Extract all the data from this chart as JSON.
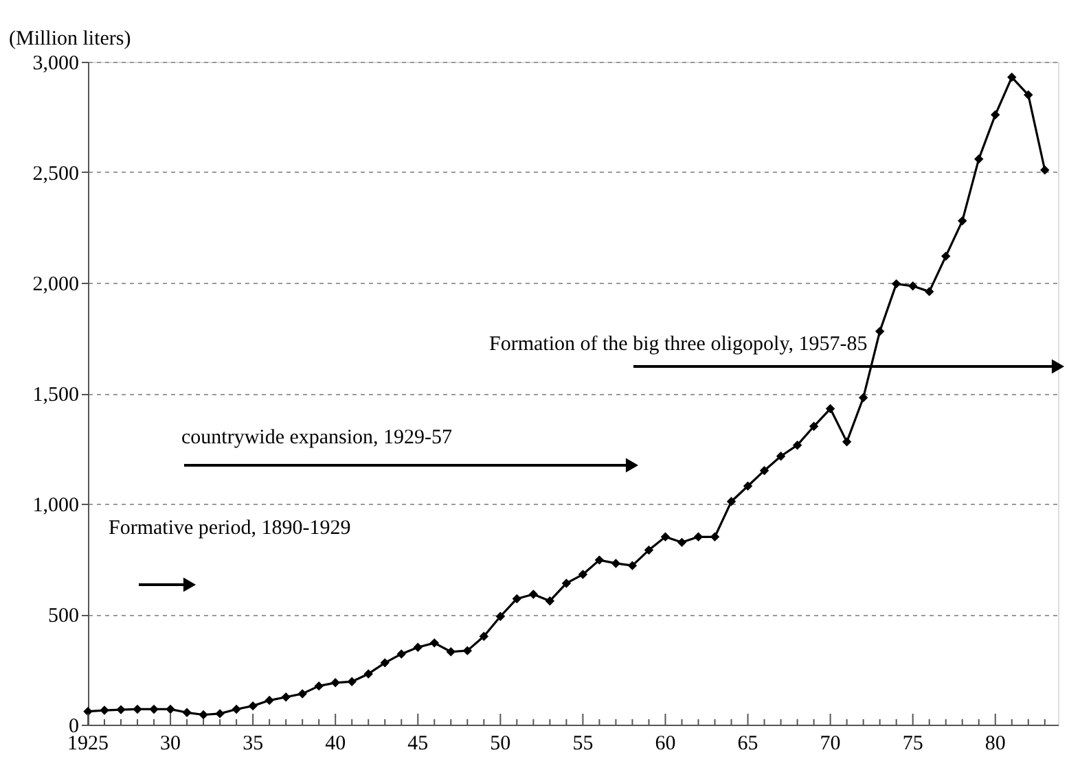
{
  "chart_data": {
    "type": "line",
    "ylabel": "(Million liters)",
    "x": [
      1925,
      1926,
      1927,
      1928,
      1929,
      1930,
      1931,
      1932,
      1933,
      1934,
      1935,
      1936,
      1937,
      1938,
      1939,
      1940,
      1941,
      1942,
      1943,
      1944,
      1945,
      1946,
      1947,
      1948,
      1949,
      1950,
      1951,
      1952,
      1953,
      1954,
      1955,
      1956,
      1957,
      1958,
      1959,
      1960,
      1961,
      1962,
      1963,
      1964,
      1965,
      1966,
      1967,
      1968,
      1969,
      1970,
      1971,
      1972,
      1973,
      1974,
      1975,
      1976,
      1977,
      1978,
      1979,
      1980,
      1981,
      1982,
      1983
    ],
    "series": [
      {
        "color": "#000000",
        "values": [
          60,
          65,
          68,
          70,
          70,
          70,
          55,
          45,
          50,
          70,
          85,
          110,
          125,
          140,
          175,
          190,
          195,
          230,
          280,
          320,
          350,
          370,
          330,
          335,
          400,
          490,
          570,
          590,
          560,
          640,
          680,
          745,
          730,
          720,
          790,
          850,
          825,
          850,
          850,
          1010,
          1080,
          1150,
          1215,
          1265,
          1350,
          1430,
          1280,
          1480,
          1780,
          1995,
          1985,
          1960,
          2120,
          2280,
          2560,
          2760,
          2930,
          2850,
          2510
        ]
      }
    ],
    "xlim": [
      1925,
      1983.8
    ],
    "xticks": [
      {
        "value": 1925,
        "label": "1925"
      },
      {
        "value": 1926,
        "label": null
      },
      {
        "value": 1927,
        "label": null
      },
      {
        "value": 1928,
        "label": null
      },
      {
        "value": 1929,
        "label": null
      },
      {
        "value": 1930,
        "label": "30"
      },
      {
        "value": 1931,
        "label": null
      },
      {
        "value": 1932,
        "label": null
      },
      {
        "value": 1933,
        "label": null
      },
      {
        "value": 1934,
        "label": null
      },
      {
        "value": 1935,
        "label": "35"
      },
      {
        "value": 1936,
        "label": null
      },
      {
        "value": 1937,
        "label": null
      },
      {
        "value": 1938,
        "label": null
      },
      {
        "value": 1939,
        "label": null
      },
      {
        "value": 1940,
        "label": "40"
      },
      {
        "value": 1941,
        "label": null
      },
      {
        "value": 1942,
        "label": null
      },
      {
        "value": 1943,
        "label": null
      },
      {
        "value": 1944,
        "label": null
      },
      {
        "value": 1945,
        "label": "45"
      },
      {
        "value": 1946,
        "label": null
      },
      {
        "value": 1947,
        "label": null
      },
      {
        "value": 1948,
        "label": null
      },
      {
        "value": 1949,
        "label": null
      },
      {
        "value": 1950,
        "label": "50"
      },
      {
        "value": 1951,
        "label": null
      },
      {
        "value": 1952,
        "label": null
      },
      {
        "value": 1953,
        "label": null
      },
      {
        "value": 1954,
        "label": null
      },
      {
        "value": 1955,
        "label": "55"
      },
      {
        "value": 1956,
        "label": null
      },
      {
        "value": 1957,
        "label": null
      },
      {
        "value": 1958,
        "label": null
      },
      {
        "value": 1959,
        "label": null
      },
      {
        "value": 1960,
        "label": "60"
      },
      {
        "value": 1961,
        "label": null
      },
      {
        "value": 1962,
        "label": null
      },
      {
        "value": 1963,
        "label": null
      },
      {
        "value": 1964,
        "label": null
      },
      {
        "value": 1965,
        "label": "65"
      },
      {
        "value": 1966,
        "label": null
      },
      {
        "value": 1967,
        "label": null
      },
      {
        "value": 1968,
        "label": null
      },
      {
        "value": 1969,
        "label": null
      },
      {
        "value": 1970,
        "label": "70"
      },
      {
        "value": 1971,
        "label": null
      },
      {
        "value": 1972,
        "label": null
      },
      {
        "value": 1973,
        "label": null
      },
      {
        "value": 1974,
        "label": null
      },
      {
        "value": 1975,
        "label": "75"
      },
      {
        "value": 1976,
        "label": null
      },
      {
        "value": 1977,
        "label": null
      },
      {
        "value": 1978,
        "label": null
      },
      {
        "value": 1979,
        "label": null
      },
      {
        "value": 1980,
        "label": "80"
      },
      {
        "value": 1981,
        "label": null
      },
      {
        "value": 1982,
        "label": null
      },
      {
        "value": 1983,
        "label": null
      }
    ],
    "ylim": [
      0,
      3000
    ],
    "yticks": [
      0,
      500,
      {
        "value": 1000,
        "label": "1,000"
      },
      {
        "value": 1500,
        "label": "1,500"
      },
      {
        "value": 2000,
        "label": "2,000"
      },
      {
        "value": 2500,
        "label": "2,500"
      },
      {
        "value": 3000,
        "label": "3,000"
      }
    ],
    "grid": "y",
    "marker": "diamond",
    "line_style": "solid",
    "annotations": [
      "Formative period, 1890-1929",
      "countrywide expansion, 1929-57",
      "Formation of the big three oligopoly, 1957-85"
    ]
  }
}
